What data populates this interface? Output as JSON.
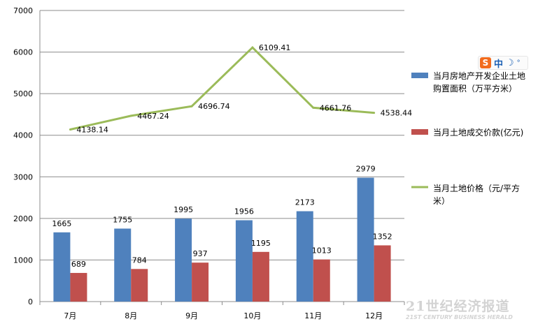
{
  "chart_data": {
    "type": "bar+line",
    "categories": [
      "7月",
      "8月",
      "9月",
      "10月",
      "11月",
      "12月"
    ],
    "series": [
      {
        "name": "当月房地产开发企业土地购置面积（万平方米）",
        "kind": "bar",
        "color": "#4f81bd",
        "values": [
          1665,
          1755,
          1995,
          1956,
          2173,
          2979
        ]
      },
      {
        "name": "当月土地成交价款(亿元)",
        "kind": "bar",
        "color": "#c0504d",
        "values": [
          689,
          784,
          937,
          1195,
          1013,
          1352
        ]
      },
      {
        "name": "当月土地价格（元/平方米）",
        "kind": "line",
        "color": "#9bbb59",
        "values": [
          4138.14,
          4467.24,
          4696.74,
          6109.41,
          4661.76,
          4538.44
        ]
      }
    ],
    "y_ticks": [
      0,
      1000,
      2000,
      3000,
      4000,
      5000,
      6000,
      7000
    ],
    "ylim": [
      0,
      7000
    ],
    "grid": true,
    "legend_position": "right",
    "legend": {
      "area_lines": [
        "当月房地产开发企业土地",
        "购置面积（万平方米）"
      ],
      "price_total_lines": [
        "当月土地成交价款(亿元)"
      ],
      "unit_price_lines": [
        "当月土地价格（元/平方",
        "米）"
      ]
    }
  },
  "ime": {
    "logo": "S",
    "lang": "中",
    "moon": "☽",
    "dot": "°"
  },
  "watermark": {
    "main": "21世纪经济报道",
    "sub": "21ST CENTURY BUSINESS HERALD"
  }
}
